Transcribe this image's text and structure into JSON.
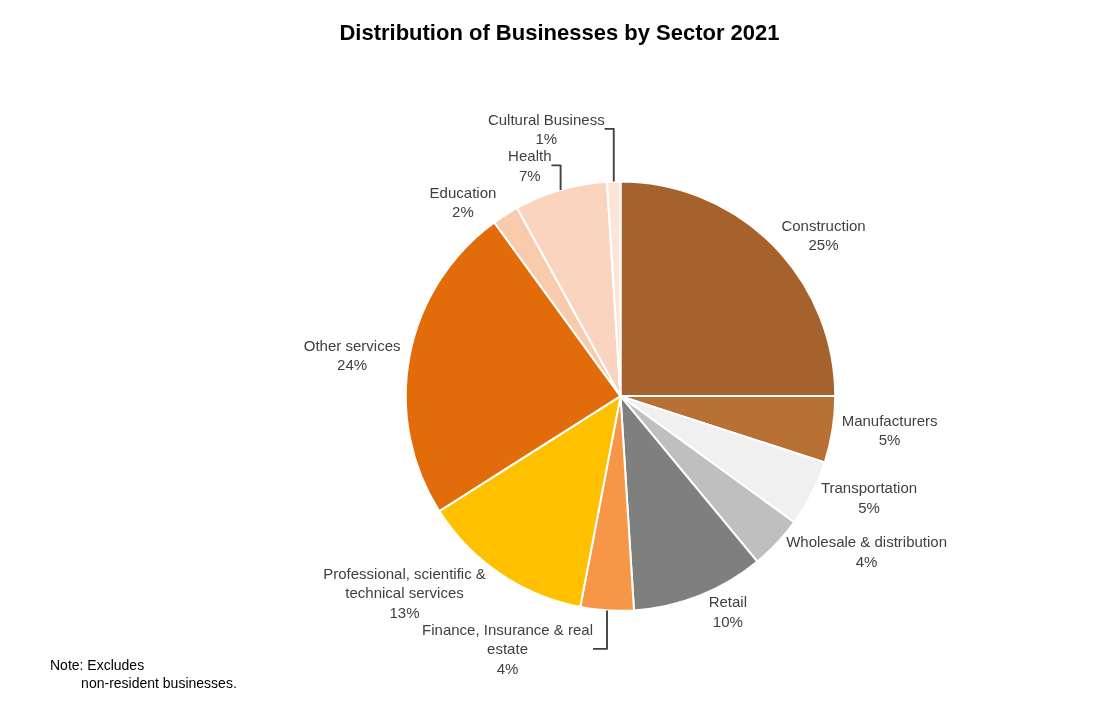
{
  "chart_data": {
    "type": "pie",
    "title": "Distribution of Businesses by Sector 2021",
    "categories": [
      "Construction",
      "Manufacturers",
      "Transportation",
      "Wholesale & distribution",
      "Retail",
      "Finance, Insurance & real estate",
      "Professional, scientific & technical services",
      "Other services",
      "Education",
      "Health",
      "Cultural Business"
    ],
    "values": [
      25,
      5,
      5,
      4,
      10,
      4,
      13,
      24,
      2,
      7,
      1
    ],
    "value_labels": [
      "25%",
      "5%",
      "5%",
      "4%",
      "10%",
      "4%",
      "13%",
      "24%",
      "2%",
      "7%",
      "1%"
    ],
    "colors": [
      "#a5622c",
      "#b87035",
      "#f0f0f0",
      "#bfbfbf",
      "#7f7f7f",
      "#f79646",
      "#ffc000",
      "#e36c0a",
      "#f8cbad",
      "#fbd4c0",
      "#fbe5d6"
    ],
    "annotations": [
      "Note: Excludes non-resident businesses."
    ],
    "legend": false
  }
}
